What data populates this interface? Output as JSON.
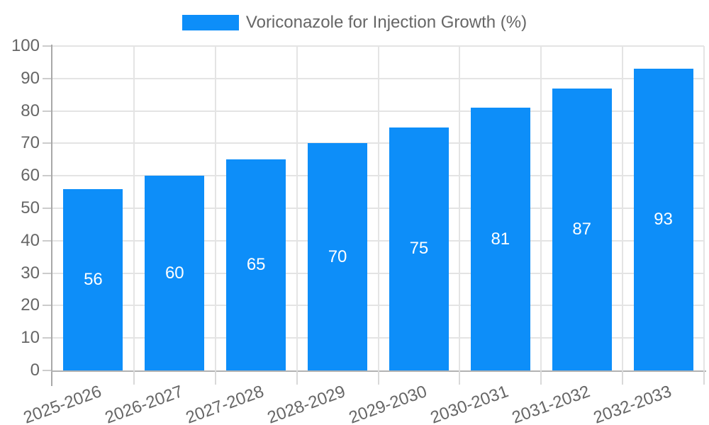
{
  "legend": {
    "label": "Voriconazole for Injection Growth (%)"
  },
  "colors": {
    "bar": "#0d8ef9",
    "grid": "#e4e4e4",
    "y_axis_line": "#a8a8a8",
    "x_axis_line": "#b2b2b2",
    "y_tick": "#cccccc",
    "x_tick": "#d9d9d9",
    "axis_text": "#666666",
    "value_text": "#ffffff",
    "background": "#ffffff"
  },
  "y_axis": {
    "tick_labels": [
      "0",
      "10",
      "20",
      "30",
      "40",
      "50",
      "60",
      "70",
      "80",
      "90",
      "100"
    ]
  },
  "chart_data": {
    "type": "bar",
    "categories": [
      "2025-2026",
      "2026-2027",
      "2027-2028",
      "2028-2029",
      "2029-2030",
      "2030-2031",
      "2031-2032",
      "2032-2033"
    ],
    "values": [
      56,
      60,
      65,
      70,
      75,
      81,
      87,
      93
    ],
    "series": [
      {
        "name": "Voriconazole for Injection Growth (%)",
        "values": [
          56,
          60,
          65,
          70,
          75,
          81,
          87,
          93
        ]
      }
    ],
    "title": "",
    "xlabel": "",
    "ylabel": "",
    "ylim": [
      0,
      100
    ],
    "ytick_step": 10,
    "grid": true,
    "legend_position": "top",
    "value_labels": "centered-inside-bars",
    "x_label_rotation_deg": -20
  }
}
